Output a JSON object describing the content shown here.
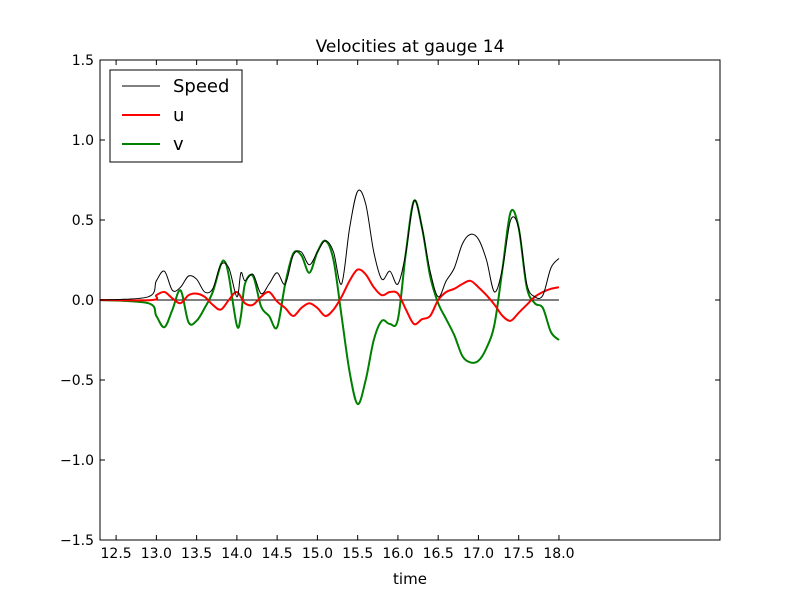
{
  "chart_data": {
    "type": "line",
    "title": "Velocities at gauge 14",
    "xlabel": "time",
    "ylabel": "",
    "xlim": [
      12.3,
      20.0
    ],
    "ylim": [
      -1.5,
      1.5
    ],
    "xticks": [
      12.5,
      13.0,
      13.5,
      14.0,
      14.5,
      15.0,
      15.5,
      16.0,
      16.5,
      17.0,
      17.5,
      18.0
    ],
    "xtick_labels": [
      "12.5",
      "13.0",
      "13.5",
      "14.0",
      "14.5",
      "15.0",
      "15.5",
      "16.0",
      "16.5",
      "17.0",
      "17.5",
      "18.0"
    ],
    "yticks": [
      -1.5,
      -1.0,
      -0.5,
      0.0,
      0.5,
      1.0,
      1.5
    ],
    "ytick_labels": [
      "−1.5",
      "−1.0",
      "−0.5",
      "0.0",
      "0.5",
      "1.0",
      "1.5"
    ],
    "grid": false,
    "legend_position": "top-left",
    "zero_line": {
      "y": 0.0,
      "x": [
        12.3,
        18.0
      ],
      "color": "#000000"
    },
    "series": [
      {
        "name": "Speed",
        "color": "#000000",
        "x": [
          12.3,
          12.9,
          13.0,
          13.1,
          13.2,
          13.3,
          13.4,
          13.5,
          13.6,
          13.7,
          13.8,
          13.9,
          14.0,
          14.05,
          14.1,
          14.2,
          14.3,
          14.4,
          14.5,
          14.6,
          14.7,
          14.8,
          14.9,
          15.0,
          15.1,
          15.2,
          15.3,
          15.4,
          15.5,
          15.6,
          15.7,
          15.8,
          15.9,
          16.0,
          16.1,
          16.2,
          16.3,
          16.4,
          16.5,
          16.6,
          16.7,
          16.8,
          16.9,
          17.0,
          17.1,
          17.2,
          17.3,
          17.4,
          17.5,
          17.6,
          17.7,
          17.8,
          17.9,
          18.0
        ],
        "values": [
          0.0,
          0.02,
          0.12,
          0.18,
          0.06,
          0.08,
          0.15,
          0.13,
          0.05,
          0.07,
          0.22,
          0.2,
          0.02,
          0.17,
          0.12,
          0.16,
          0.04,
          0.1,
          0.17,
          0.1,
          0.28,
          0.3,
          0.22,
          0.3,
          0.37,
          0.3,
          0.1,
          0.45,
          0.68,
          0.6,
          0.3,
          0.13,
          0.18,
          0.1,
          0.3,
          0.62,
          0.45,
          0.18,
          0.02,
          0.12,
          0.2,
          0.35,
          0.41,
          0.38,
          0.25,
          0.05,
          0.2,
          0.5,
          0.45,
          0.1,
          0.02,
          0.03,
          0.2,
          0.26
        ]
      },
      {
        "name": "u",
        "color": "#ff0000",
        "x": [
          12.3,
          12.95,
          13.0,
          13.1,
          13.2,
          13.3,
          13.4,
          13.5,
          13.6,
          13.7,
          13.8,
          13.9,
          14.0,
          14.1,
          14.2,
          14.3,
          14.4,
          14.5,
          14.6,
          14.7,
          14.8,
          14.9,
          15.0,
          15.1,
          15.2,
          15.3,
          15.4,
          15.5,
          15.6,
          15.7,
          15.8,
          15.9,
          16.0,
          16.1,
          16.2,
          16.3,
          16.4,
          16.5,
          16.6,
          16.7,
          16.8,
          16.9,
          17.0,
          17.1,
          17.2,
          17.3,
          17.4,
          17.5,
          17.6,
          17.7,
          17.8,
          17.9,
          18.0
        ],
        "values": [
          0.0,
          0.0,
          0.03,
          0.05,
          0.01,
          -0.02,
          0.03,
          0.04,
          0.02,
          -0.03,
          -0.06,
          0.0,
          0.05,
          -0.02,
          -0.03,
          0.02,
          0.05,
          -0.01,
          -0.05,
          -0.1,
          -0.05,
          -0.02,
          -0.05,
          -0.1,
          -0.06,
          0.02,
          0.12,
          0.19,
          0.16,
          0.08,
          0.03,
          0.05,
          0.04,
          -0.06,
          -0.15,
          -0.12,
          -0.1,
          0.0,
          0.05,
          0.07,
          0.1,
          0.12,
          0.08,
          0.03,
          -0.03,
          -0.1,
          -0.13,
          -0.08,
          -0.03,
          0.02,
          0.05,
          0.07,
          0.08
        ]
      },
      {
        "name": "v",
        "color": "#008000",
        "x": [
          12.3,
          12.9,
          13.0,
          13.1,
          13.2,
          13.3,
          13.4,
          13.5,
          13.6,
          13.7,
          13.8,
          13.85,
          13.9,
          14.0,
          14.05,
          14.1,
          14.2,
          14.3,
          14.4,
          14.5,
          14.6,
          14.7,
          14.8,
          14.9,
          15.0,
          15.1,
          15.2,
          15.3,
          15.4,
          15.5,
          15.6,
          15.7,
          15.8,
          15.9,
          16.0,
          16.1,
          16.2,
          16.3,
          16.4,
          16.5,
          16.6,
          16.7,
          16.8,
          16.9,
          17.0,
          17.1,
          17.2,
          17.3,
          17.4,
          17.5,
          17.6,
          17.7,
          17.8,
          17.9,
          18.0
        ],
        "values": [
          0.0,
          -0.02,
          -0.1,
          -0.17,
          -0.06,
          0.06,
          -0.14,
          -0.13,
          -0.05,
          0.05,
          0.22,
          0.24,
          0.15,
          -0.16,
          -0.1,
          0.1,
          0.15,
          -0.04,
          -0.1,
          -0.17,
          0.1,
          0.29,
          0.28,
          0.17,
          0.3,
          0.37,
          0.25,
          -0.1,
          -0.45,
          -0.65,
          -0.5,
          -0.25,
          -0.13,
          -0.15,
          -0.12,
          0.3,
          0.62,
          0.45,
          0.15,
          -0.02,
          -0.12,
          -0.22,
          -0.35,
          -0.39,
          -0.38,
          -0.3,
          -0.15,
          0.2,
          0.55,
          0.45,
          0.08,
          -0.02,
          -0.05,
          -0.2,
          -0.25
        ]
      }
    ]
  }
}
